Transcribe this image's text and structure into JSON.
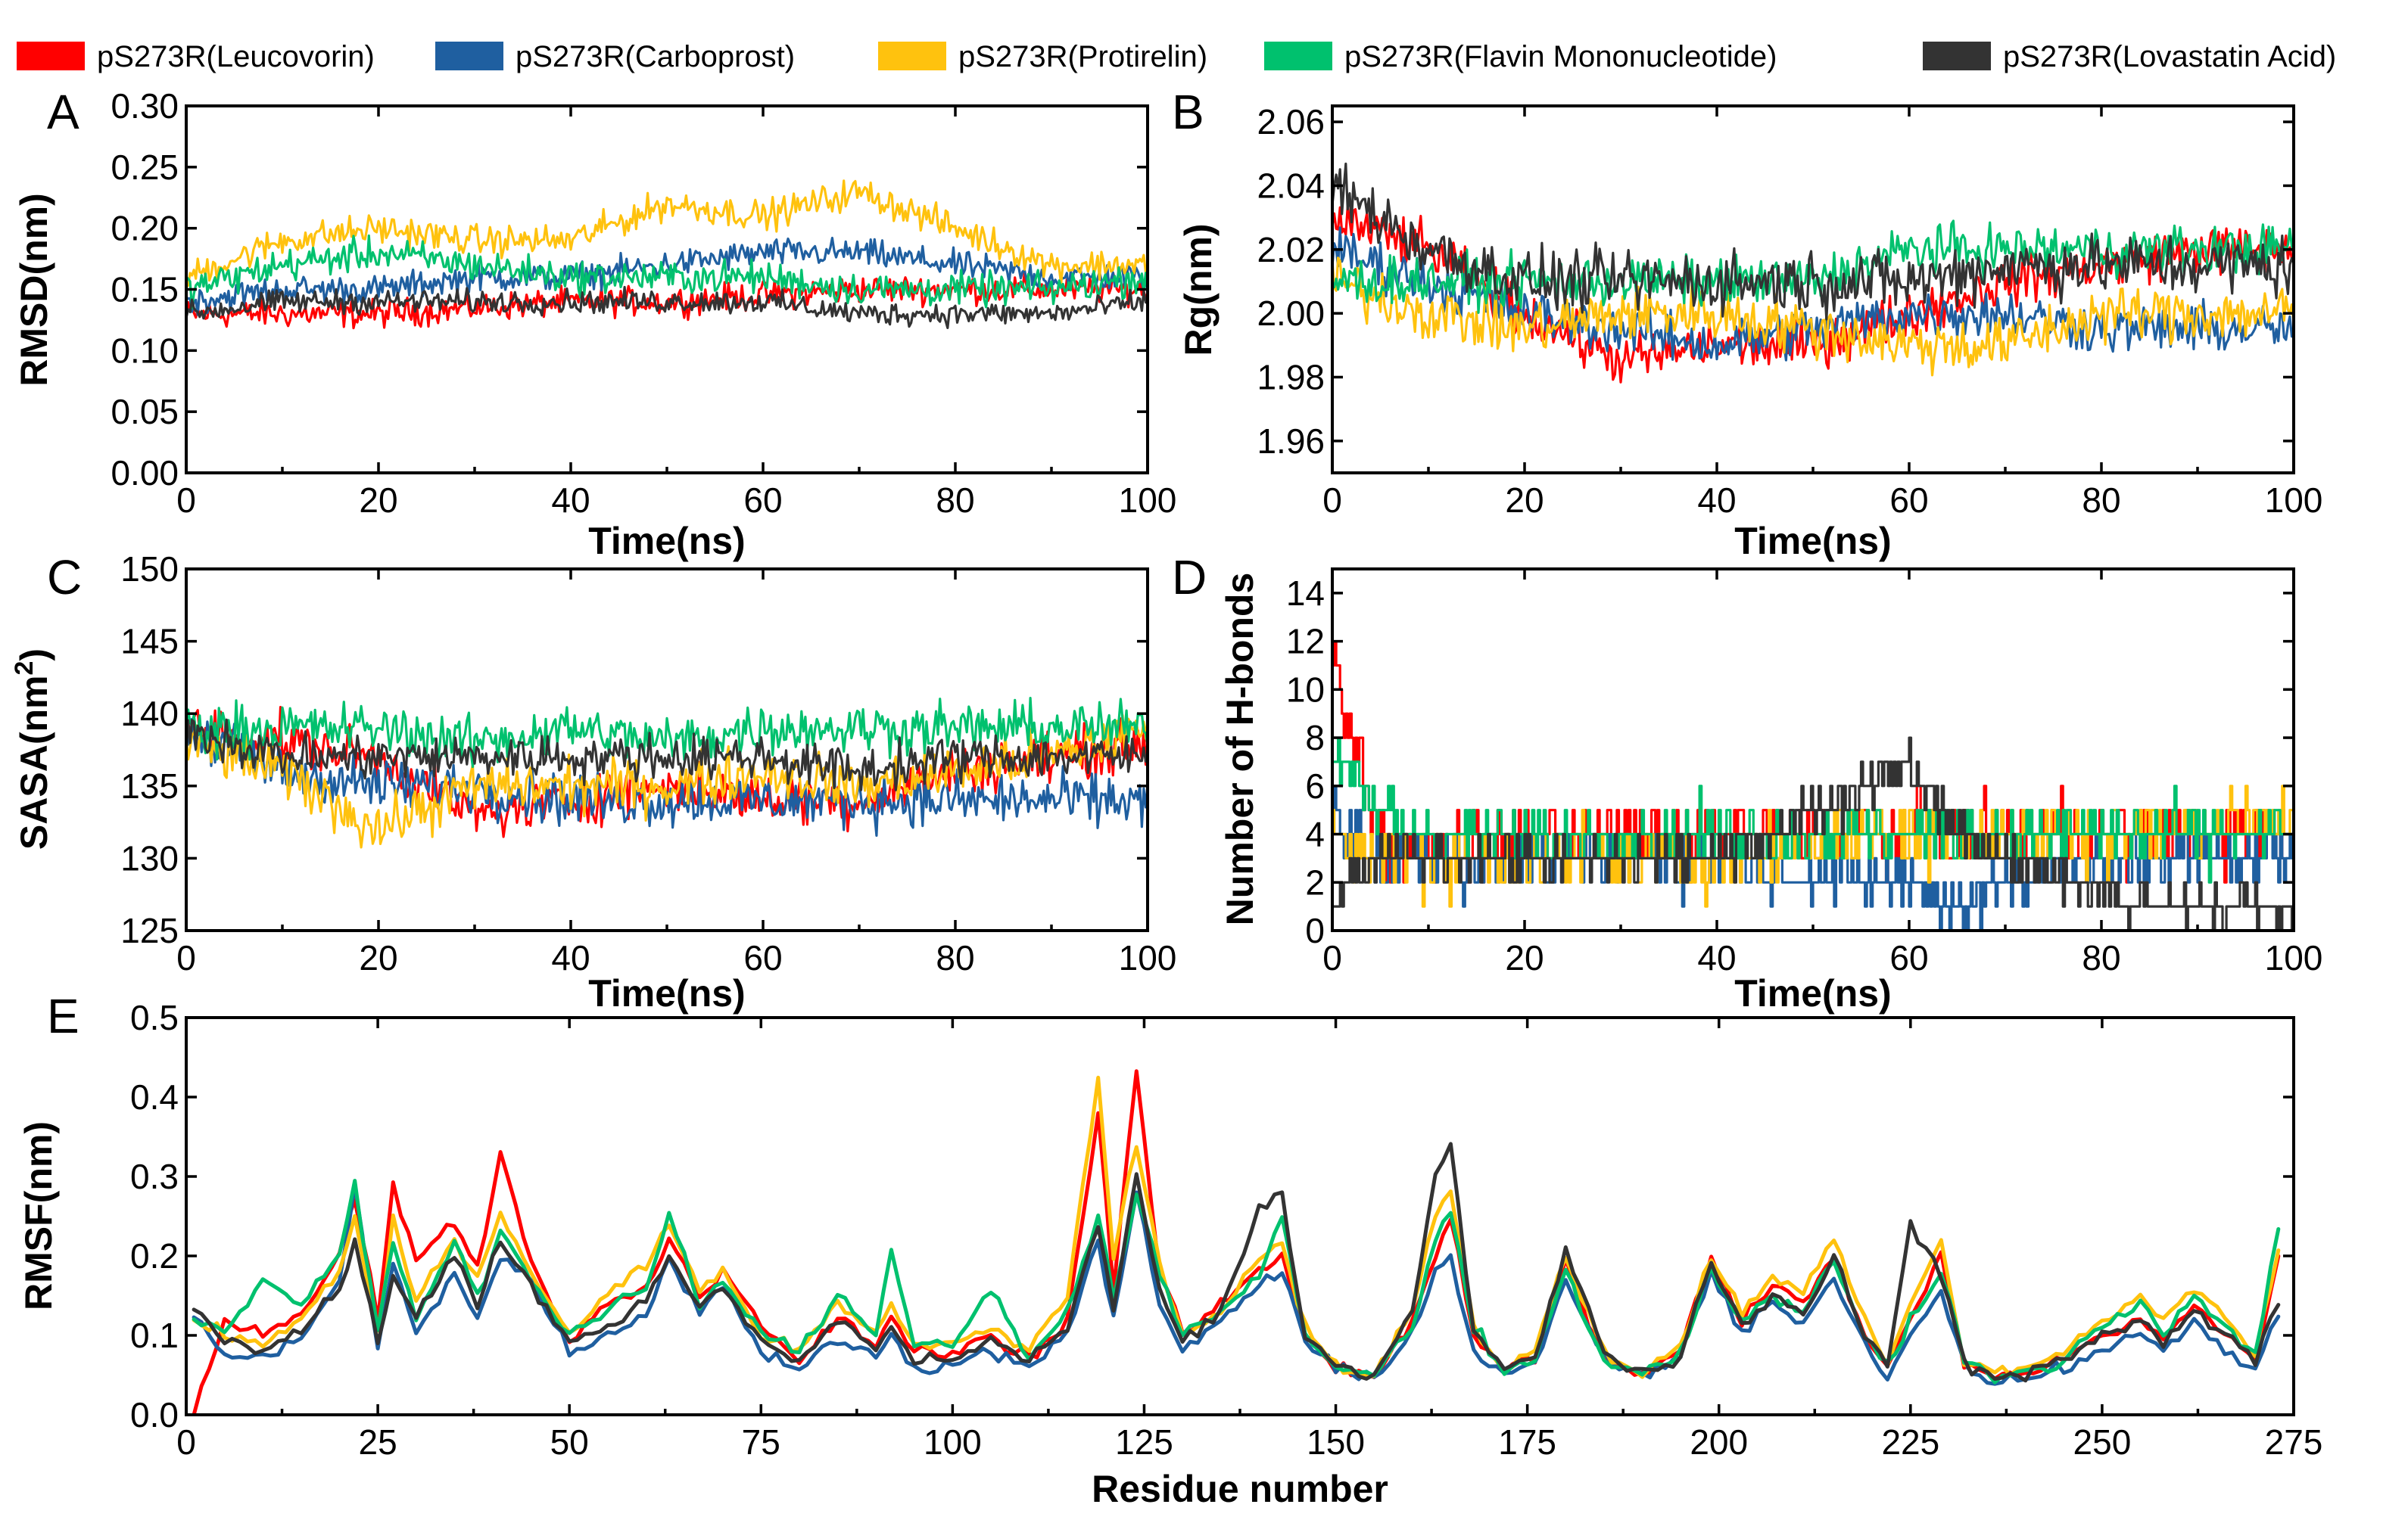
{
  "colors": {
    "leucovorin": "#ff0000",
    "carboprost": "#1f5fa0",
    "protirelin": "#ffc20e",
    "fmn": "#00c16e",
    "lovastatin": "#333333"
  },
  "legend": [
    {
      "label": "pS273R(Leucovorin)",
      "color": "#ff0000"
    },
    {
      "label": "pS273R(Carboprost)",
      "color": "#1f5fa0"
    },
    {
      "label": "pS273R(Protirelin)",
      "color": "#ffc20e"
    },
    {
      "label": "pS273R(Flavin Mononucleotide)",
      "color": "#00c16e"
    },
    {
      "label": "pS273R(Lovastatin Acid)",
      "color": "#333333"
    }
  ],
  "chart_data": [
    {
      "panel": "A",
      "type": "line",
      "xlabel": "Time(ns)",
      "ylabel": "RMSD(nm)",
      "xlim": [
        0,
        100
      ],
      "ylim": [
        0.0,
        0.3
      ],
      "xticks": [
        "0",
        "20",
        "40",
        "60",
        "80",
        "100"
      ],
      "yticks": [
        "0.00",
        "0.05",
        "0.10",
        "0.15",
        "0.20",
        "0.25",
        "0.30"
      ],
      "x": [
        0,
        10,
        20,
        30,
        40,
        50,
        60,
        70,
        80,
        90,
        100
      ],
      "series": [
        {
          "name": "pS273R(Leucovorin)",
          "noise": 0.012,
          "values": [
            0.13,
            0.13,
            0.13,
            0.135,
            0.14,
            0.14,
            0.145,
            0.15,
            0.15,
            0.15,
            0.15
          ]
        },
        {
          "name": "pS273R(Carboprost)",
          "noise": 0.012,
          "values": [
            0.14,
            0.15,
            0.15,
            0.16,
            0.16,
            0.17,
            0.18,
            0.18,
            0.17,
            0.16,
            0.16
          ]
        },
        {
          "name": "pS273R(Protirelin)",
          "noise": 0.013,
          "values": [
            0.16,
            0.19,
            0.2,
            0.19,
            0.19,
            0.22,
            0.21,
            0.23,
            0.2,
            0.17,
            0.17
          ]
        },
        {
          "name": "pS273R(Flavin Mononucleotide)",
          "noise": 0.014,
          "values": [
            0.15,
            0.17,
            0.18,
            0.17,
            0.16,
            0.16,
            0.16,
            0.15,
            0.15,
            0.15,
            0.16
          ]
        },
        {
          "name": "pS273R(Lovastatin Acid)",
          "noise": 0.01,
          "values": [
            0.13,
            0.14,
            0.14,
            0.14,
            0.14,
            0.14,
            0.14,
            0.13,
            0.13,
            0.13,
            0.14
          ]
        }
      ]
    },
    {
      "panel": "B",
      "type": "line",
      "xlabel": "Time(ns)",
      "ylabel": "Rg(nm)",
      "xlim": [
        0,
        100
      ],
      "ylim": [
        1.95,
        2.065
      ],
      "xticks": [
        "0",
        "20",
        "40",
        "60",
        "80",
        "100"
      ],
      "yticks": [
        "1.96",
        "1.98",
        "2.00",
        "2.02",
        "2.04",
        "2.06"
      ],
      "x": [
        0,
        10,
        20,
        30,
        40,
        50,
        60,
        70,
        80,
        90,
        100
      ],
      "series": [
        {
          "name": "pS273R(Leucovorin)",
          "noise": 0.008,
          "values": [
            2.03,
            2.02,
            2.0,
            1.985,
            1.99,
            1.99,
            2.0,
            2.01,
            2.015,
            2.02,
            2.02
          ]
        },
        {
          "name": "pS273R(Carboprost)",
          "noise": 0.008,
          "values": [
            2.02,
            2.01,
            2.0,
            1.995,
            1.99,
            1.995,
            2.0,
            2.0,
            1.995,
            1.995,
            1.995
          ]
        },
        {
          "name": "pS273R(Protirelin)",
          "noise": 0.009,
          "values": [
            2.01,
            2.0,
            1.995,
            2.0,
            2.0,
            1.995,
            1.99,
            1.99,
            2.0,
            2.0,
            2.0
          ]
        },
        {
          "name": "pS273R(Flavin Mononucleotide)",
          "noise": 0.008,
          "values": [
            2.01,
            2.01,
            2.01,
            2.01,
            2.01,
            2.01,
            2.02,
            2.02,
            2.02,
            2.02,
            2.02
          ]
        },
        {
          "name": "pS273R(Lovastatin Acid)",
          "noise": 0.01,
          "values": [
            2.04,
            2.02,
            2.01,
            2.01,
            2.01,
            2.01,
            2.01,
            2.015,
            2.015,
            2.015,
            2.015
          ]
        }
      ]
    },
    {
      "panel": "C",
      "type": "line",
      "xlabel": "Time(ns)",
      "ylabel": "SASA(nm",
      "ylabel_sup": "2",
      "ylabel_close": ")",
      "xlim": [
        0,
        100
      ],
      "ylim": [
        125,
        150
      ],
      "xticks": [
        "0",
        "20",
        "40",
        "60",
        "80",
        "100"
      ],
      "yticks": [
        "125",
        "130",
        "135",
        "140",
        "145",
        "150"
      ],
      "x": [
        0,
        10,
        20,
        30,
        40,
        50,
        60,
        70,
        80,
        90,
        100
      ],
      "series": [
        {
          "name": "pS273R(Leucovorin)",
          "noise": 1.8,
          "values": [
            139,
            138,
            137,
            133,
            134,
            135,
            134,
            134,
            136,
            137,
            138
          ]
        },
        {
          "name": "pS273R(Carboprost)",
          "noise": 1.9,
          "values": [
            139,
            136,
            135,
            135,
            134,
            134,
            134,
            134,
            134,
            134,
            134
          ]
        },
        {
          "name": "pS273R(Protirelin)",
          "noise": 1.9,
          "values": [
            138,
            136,
            132,
            135,
            135,
            135,
            136,
            135,
            136,
            137,
            139
          ]
        },
        {
          "name": "pS273R(Flavin Mononucleotide)",
          "noise": 1.8,
          "values": [
            139,
            139,
            139,
            138,
            139,
            138,
            139,
            139,
            139,
            139,
            139
          ]
        },
        {
          "name": "pS273R(Lovastatin Acid)",
          "noise": 1.6,
          "values": [
            139,
            137,
            137,
            137,
            137,
            137,
            137,
            136,
            137,
            137,
            137
          ]
        }
      ]
    },
    {
      "panel": "D",
      "type": "line",
      "xlabel": "Time(ns)",
      "ylabel": "Number of H-bonds",
      "xlim": [
        0,
        100
      ],
      "ylim": [
        0,
        15
      ],
      "xticks": [
        "0",
        "20",
        "40",
        "60",
        "80",
        "100"
      ],
      "yticks": [
        "0",
        "2",
        "4",
        "6",
        "8",
        "10",
        "12",
        "14"
      ],
      "x": [
        0,
        2,
        5,
        10,
        20,
        40,
        55,
        60,
        65,
        70,
        85,
        100
      ],
      "series": [
        {
          "name": "pS273R(Leucovorin)",
          "noise": 1.4,
          "step": true,
          "values": [
            12,
            8,
            4,
            3,
            4,
            4,
            4,
            4,
            4,
            4,
            4,
            4
          ]
        },
        {
          "name": "pS273R(Carboprost)",
          "noise": 1.3,
          "step": true,
          "values": [
            5,
            4,
            3,
            3,
            3,
            3,
            2,
            2,
            1,
            2,
            3,
            3
          ]
        },
        {
          "name": "pS273R(Protirelin)",
          "noise": 1.5,
          "step": true,
          "values": [
            4,
            4,
            3,
            3,
            3,
            3,
            4,
            4,
            4,
            4,
            4,
            5
          ]
        },
        {
          "name": "pS273R(Flavin Mononucleotide)",
          "noise": 1.2,
          "step": true,
          "values": [
            7,
            6,
            5,
            4,
            4,
            4,
            4,
            4,
            4,
            4,
            4,
            4
          ]
        },
        {
          "name": "pS273R(Lovastatin Acid)",
          "noise": 1.0,
          "step": true,
          "values": [
            1,
            2,
            3,
            3,
            3,
            3,
            6,
            7,
            4,
            3,
            1,
            1
          ]
        }
      ]
    },
    {
      "panel": "E",
      "type": "line",
      "xlabel": "Residue number",
      "ylabel": "RMSF(nm)",
      "xlim": [
        0,
        275
      ],
      "ylim": [
        0.0,
        0.5
      ],
      "xticks": [
        "0",
        "25",
        "50",
        "75",
        "100",
        "125",
        "150",
        "175",
        "200",
        "225",
        "250",
        "275"
      ],
      "yticks": [
        "0.0",
        "0.1",
        "0.2",
        "0.3",
        "0.4",
        "0.5"
      ],
      "x": [
        1,
        5,
        10,
        15,
        20,
        22,
        25,
        27,
        30,
        35,
        38,
        41,
        45,
        50,
        55,
        60,
        63,
        67,
        70,
        75,
        80,
        85,
        90,
        92,
        95,
        100,
        105,
        110,
        115,
        119,
        121,
        124,
        127,
        130,
        135,
        140,
        143,
        146,
        150,
        155,
        160,
        163,
        165,
        168,
        172,
        176,
        180,
        185,
        190,
        195,
        199,
        203,
        207,
        211,
        215,
        219,
        222,
        225,
        229,
        232,
        236,
        240,
        245,
        250,
        255,
        258,
        262,
        266,
        270,
        273
      ],
      "series": [
        {
          "name": "pS273R(Leucovorin)",
          "values": [
            0.0,
            0.12,
            0.1,
            0.13,
            0.2,
            0.28,
            0.12,
            0.29,
            0.2,
            0.24,
            0.18,
            0.33,
            0.19,
            0.09,
            0.14,
            0.16,
            0.22,
            0.15,
            0.18,
            0.11,
            0.07,
            0.12,
            0.09,
            0.12,
            0.08,
            0.08,
            0.1,
            0.07,
            0.12,
            0.38,
            0.16,
            0.43,
            0.18,
            0.1,
            0.14,
            0.18,
            0.2,
            0.1,
            0.06,
            0.05,
            0.12,
            0.2,
            0.25,
            0.1,
            0.06,
            0.07,
            0.19,
            0.07,
            0.05,
            0.08,
            0.2,
            0.12,
            0.16,
            0.14,
            0.2,
            0.1,
            0.06,
            0.12,
            0.2,
            0.06,
            0.05,
            0.05,
            0.07,
            0.1,
            0.12,
            0.1,
            0.14,
            0.1,
            0.07,
            0.2
          ]
        },
        {
          "name": "pS273R(Carboprost)",
          "values": [
            0.12,
            0.08,
            0.07,
            0.1,
            0.17,
            0.29,
            0.08,
            0.2,
            0.1,
            0.18,
            0.12,
            0.2,
            0.17,
            0.08,
            0.1,
            0.12,
            0.2,
            0.13,
            0.16,
            0.08,
            0.06,
            0.1,
            0.07,
            0.1,
            0.06,
            0.06,
            0.08,
            0.06,
            0.1,
            0.22,
            0.12,
            0.28,
            0.14,
            0.08,
            0.12,
            0.16,
            0.18,
            0.09,
            0.06,
            0.05,
            0.1,
            0.18,
            0.2,
            0.08,
            0.05,
            0.06,
            0.17,
            0.07,
            0.05,
            0.07,
            0.18,
            0.1,
            0.14,
            0.12,
            0.17,
            0.09,
            0.05,
            0.1,
            0.16,
            0.06,
            0.04,
            0.05,
            0.06,
            0.08,
            0.1,
            0.08,
            0.12,
            0.08,
            0.06,
            0.12
          ]
        },
        {
          "name": "pS273R(Protirelin)",
          "values": [
            0.12,
            0.1,
            0.09,
            0.12,
            0.18,
            0.25,
            0.1,
            0.24,
            0.15,
            0.22,
            0.17,
            0.25,
            0.18,
            0.1,
            0.15,
            0.19,
            0.24,
            0.16,
            0.18,
            0.1,
            0.08,
            0.14,
            0.1,
            0.14,
            0.09,
            0.09,
            0.11,
            0.08,
            0.15,
            0.43,
            0.2,
            0.34,
            0.19,
            0.1,
            0.13,
            0.2,
            0.22,
            0.11,
            0.06,
            0.05,
            0.13,
            0.25,
            0.28,
            0.11,
            0.06,
            0.08,
            0.2,
            0.08,
            0.05,
            0.09,
            0.2,
            0.13,
            0.17,
            0.16,
            0.22,
            0.12,
            0.06,
            0.14,
            0.22,
            0.07,
            0.05,
            0.06,
            0.08,
            0.12,
            0.15,
            0.12,
            0.16,
            0.12,
            0.08,
            0.2
          ]
        },
        {
          "name": "pS273R(Flavin Mononucleotide)",
          "values": [
            0.12,
            0.1,
            0.17,
            0.14,
            0.2,
            0.29,
            0.11,
            0.22,
            0.12,
            0.22,
            0.15,
            0.23,
            0.17,
            0.1,
            0.13,
            0.16,
            0.25,
            0.14,
            0.17,
            0.1,
            0.08,
            0.15,
            0.1,
            0.21,
            0.09,
            0.09,
            0.16,
            0.07,
            0.13,
            0.25,
            0.15,
            0.28,
            0.18,
            0.1,
            0.13,
            0.17,
            0.25,
            0.1,
            0.06,
            0.05,
            0.11,
            0.22,
            0.26,
            0.11,
            0.06,
            0.07,
            0.18,
            0.07,
            0.05,
            0.08,
            0.18,
            0.12,
            0.15,
            0.13,
            0.19,
            0.1,
            0.06,
            0.12,
            0.18,
            0.07,
            0.05,
            0.05,
            0.07,
            0.11,
            0.14,
            0.1,
            0.15,
            0.11,
            0.08,
            0.23
          ]
        },
        {
          "name": "pS273R(Lovastatin Acid)",
          "values": [
            0.14,
            0.09,
            0.08,
            0.11,
            0.16,
            0.22,
            0.09,
            0.18,
            0.12,
            0.2,
            0.14,
            0.22,
            0.16,
            0.09,
            0.11,
            0.14,
            0.2,
            0.14,
            0.16,
            0.09,
            0.07,
            0.12,
            0.08,
            0.11,
            0.07,
            0.07,
            0.09,
            0.07,
            0.11,
            0.24,
            0.13,
            0.3,
            0.16,
            0.09,
            0.13,
            0.26,
            0.28,
            0.1,
            0.06,
            0.05,
            0.13,
            0.3,
            0.34,
            0.1,
            0.06,
            0.07,
            0.21,
            0.08,
            0.05,
            0.07,
            0.19,
            0.11,
            0.15,
            0.13,
            0.2,
            0.1,
            0.06,
            0.24,
            0.18,
            0.06,
            0.05,
            0.05,
            0.07,
            0.1,
            0.12,
            0.09,
            0.13,
            0.1,
            0.07,
            0.14
          ]
        }
      ]
    }
  ]
}
